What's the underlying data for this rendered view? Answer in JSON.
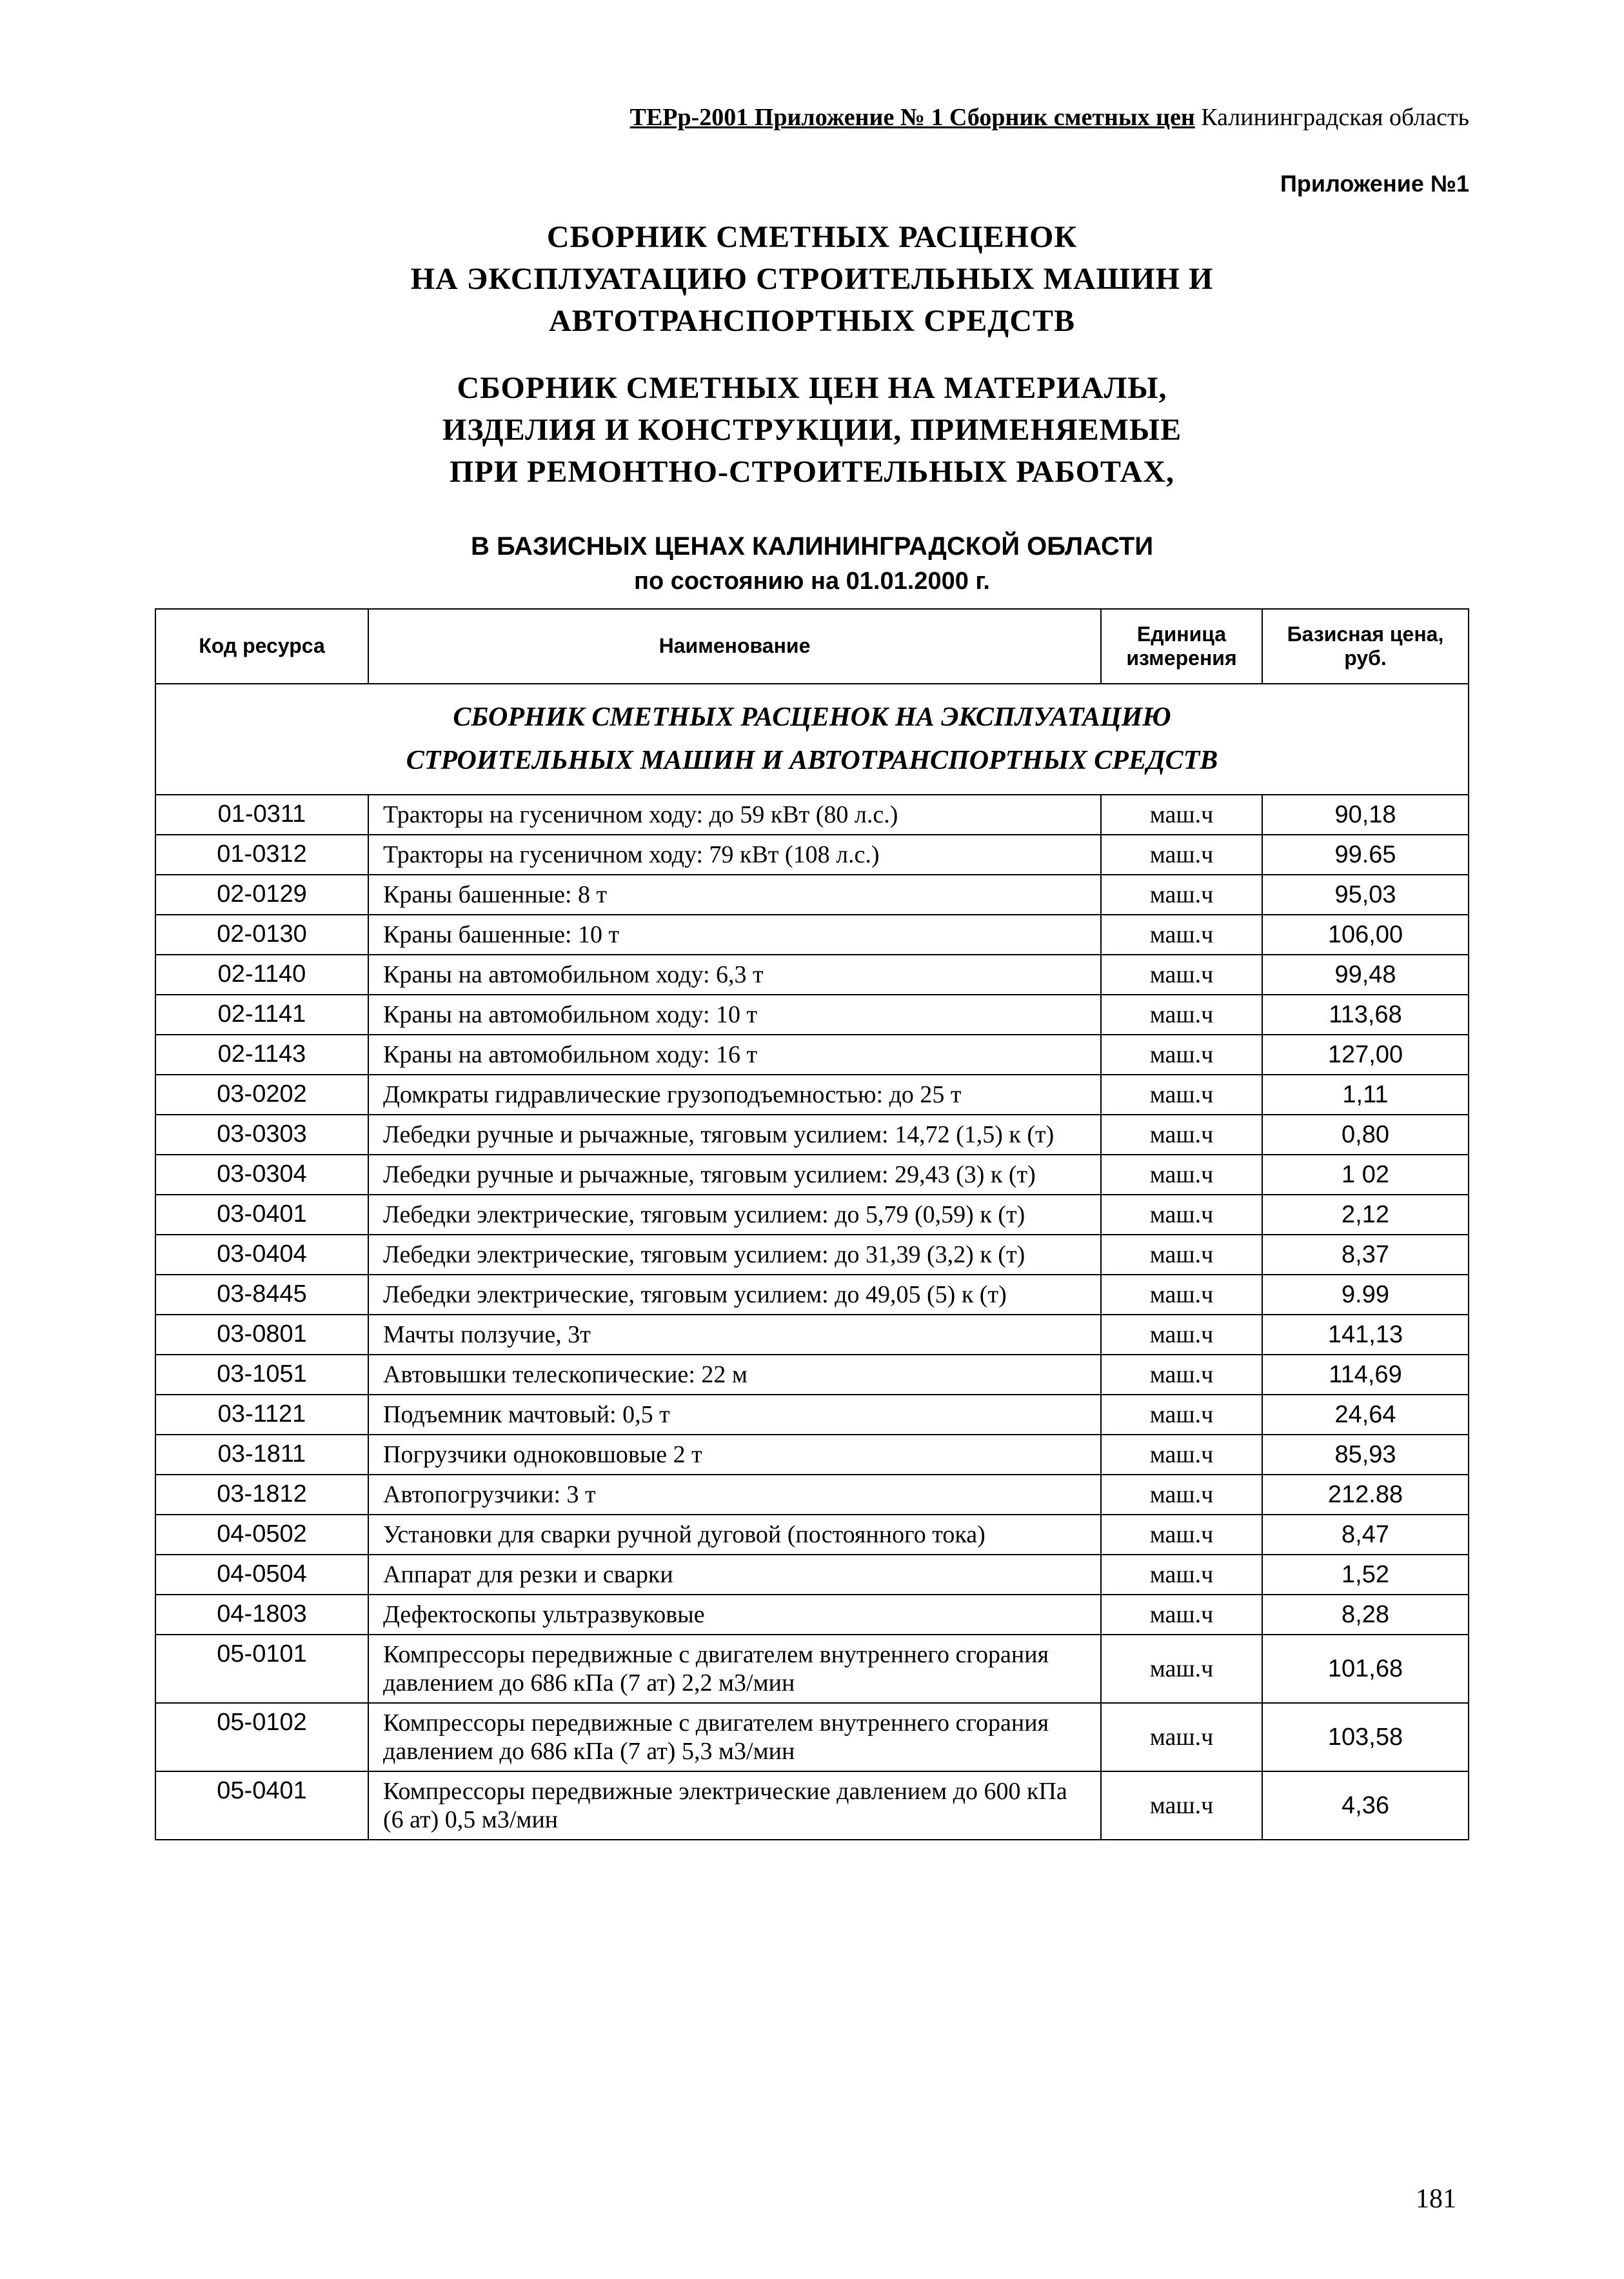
{
  "header": {
    "left": "ТЕРр-2001 Приложение № 1 Сборник сметных цен",
    "right": "  Калининградская область"
  },
  "annex": "Приложение №1",
  "title1_line1": "СБОРНИК  СМЕТНЫХ  РАСЦЕНОК",
  "title1_line2": "НА  ЭКСПЛУАТАЦИЮ  СТРОИТЕЛЬНЫХ  МАШИН  И",
  "title1_line3": "АВТОТРАНСПОРТНЫХ  СРЕДСТВ",
  "title2_line1": "СБОРНИК  СМЕТНЫХ  ЦЕН НА  МАТЕРИАЛЫ,",
  "title2_line2": "ИЗДЕЛИЯ  И  КОНСТРУКЦИИ,  ПРИМЕНЯЕМЫЕ",
  "title2_line3": "ПРИ  РЕМОНТНО-СТРОИТЕЛЬНЫХ  РАБОТАХ,",
  "subhead": "В БАЗИСНЫХ ЦЕНАХ КАЛИНИНГРАДСКОЙ ОБЛАСТИ",
  "subhead2": "по состоянию на 01.01.2000 г.",
  "columns": {
    "code": "Код ресурса",
    "name": "Наименование",
    "unit": "Единица измерения",
    "price": "Базисная цена, руб."
  },
  "section_title_line1": "СБОРНИК СМЕТНЫХ РАСЦЕНОК НА ЭКСПЛУАТАЦИЮ",
  "section_title_line2": "СТРОИТЕЛЬНЫХ МАШИН И АВТОТРАНСПОРТНЫХ СРЕДСТВ",
  "rows": [
    {
      "code": "01-0311",
      "name": "Тракторы на гусеничном ходу:  до 59 кВт  (80 л.с.)",
      "unit": "маш.ч",
      "price": "90,18"
    },
    {
      "code": "01-0312",
      "name": "Тракторы на гусеничном ходу:  79 кВт  (108 л.с.)",
      "unit": "маш.ч",
      "price": "99.65"
    },
    {
      "code": "02-0129",
      "name": "Краны башенные:  8 т",
      "unit": "маш.ч",
      "price": "95,03"
    },
    {
      "code": "02-0130",
      "name": "Краны башенные:  10 т",
      "unit": "маш.ч",
      "price": "106,00"
    },
    {
      "code": "02-1140",
      "name": "Краны на автомобильном ходу:  6,3 т",
      "unit": "маш.ч",
      "price": "99,48"
    },
    {
      "code": "02-1141",
      "name": "Краны на автомобильном ходу:  10 т",
      "unit": "маш.ч",
      "price": "113,68"
    },
    {
      "code": "02-1143",
      "name": "Краны на автомобильном ходу:  16 т",
      "unit": "маш.ч",
      "price": "127,00"
    },
    {
      "code": "03-0202",
      "name": "Домкраты гидравлические грузоподъемностью:  до  25 т",
      "unit": "маш.ч",
      "price": "1,11"
    },
    {
      "code": "03-0303",
      "name": "Лебедки ручные и рычажные, тяговым усилием:  14,72 (1,5) к (т)",
      "unit": "маш.ч",
      "price": "0,80"
    },
    {
      "code": "03-0304",
      "name": "Лебедки ручные и рычажные, тяговым усилием:  29,43 (3) к (т)",
      "unit": "маш.ч",
      "price": "1 02"
    },
    {
      "code": "03-0401",
      "name": "Лебедки электрические, тяговым усилием:  до  5,79 (0,59) к (т)",
      "unit": "маш.ч",
      "price": "2,12"
    },
    {
      "code": "03-0404",
      "name": "Лебедки электрические, тяговым усилием:  до  31,39 (3,2) к (т)",
      "unit": "маш.ч",
      "price": "8,37"
    },
    {
      "code": "03-8445",
      "name": "Лебедки электрические, тяговым усилием:  до  49,05 (5) к (т)",
      "unit": "маш.ч",
      "price": "9.99"
    },
    {
      "code": "03-0801",
      "name": "Мачты ползучие, 3т",
      "unit": "маш.ч",
      "price": "141,13"
    },
    {
      "code": "03-1051",
      "name": "Автовышки телескопические:  22 м",
      "unit": "маш.ч",
      "price": "114,69"
    },
    {
      "code": "03-1121",
      "name": "Подъемник мачтовый:  0,5 т",
      "unit": "маш.ч",
      "price": "24,64"
    },
    {
      "code": "03-1811",
      "name": "Погрузчики  одноковшовые 2 т",
      "unit": "маш.ч",
      "price": "85,93"
    },
    {
      "code": "03-1812",
      "name": "Автопогрузчики:  3 т",
      "unit": "маш.ч",
      "price": "212.88"
    },
    {
      "code": "04-0502",
      "name": "Установки для сварки ручной дуговой (постоянного тока)",
      "unit": "маш.ч",
      "price": "8,47"
    },
    {
      "code": "04-0504",
      "name": "Аппарат для резки и сварки",
      "unit": "маш.ч",
      "price": "1,52"
    },
    {
      "code": "04-1803",
      "name": "Дефектоскопы ультразвуковые",
      "unit": "маш.ч",
      "price": "8,28"
    },
    {
      "code": "05-0101",
      "name": "Компрессоры передвижные с двигателем внутреннего сгорания давлением до 686 кПа  (7 ат)  2,2 м3/мин",
      "unit": "маш.ч",
      "price": "101,68"
    },
    {
      "code": "05-0102",
      "name": "Компрессоры передвижные с двигателем внутреннего сгорания давлением до 686 кПа  (7 ат)  5,3 м3/мин",
      "unit": "маш.ч",
      "price": "103,58"
    },
    {
      "code": "05-0401",
      "name": "Компрессоры передвижные электрические давлением до 600 кПа  (6 ат)  0,5 м3/мин",
      "unit": "маш.ч",
      "price": "4,36"
    }
  ],
  "page_number": "181",
  "colors": {
    "text": "#000000",
    "background": "#ffffff",
    "border": "#000000"
  },
  "fonts": {
    "serif": "Times New Roman",
    "sans": "Arial"
  }
}
